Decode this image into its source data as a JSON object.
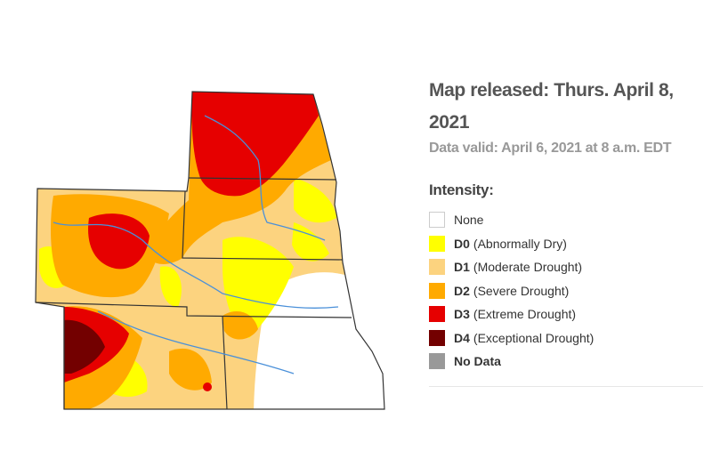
{
  "title": "Map released: Thurs. April 8, 2021",
  "subtitle": "Data valid: April 6, 2021 at 8 a.m. EDT",
  "legend": {
    "title": "Intensity:",
    "items": [
      {
        "label": "None",
        "color": "#ffffff"
      },
      {
        "code": "D0",
        "label": "(Abnormally Dry)",
        "color": "#ffff00"
      },
      {
        "code": "D1",
        "label": "(Moderate Drought)",
        "color": "#fcd37f"
      },
      {
        "code": "D2",
        "label": "(Severe Drought)",
        "color": "#ffaa00"
      },
      {
        "code": "D3",
        "label": "(Extreme Drought)",
        "color": "#e60000"
      },
      {
        "code": "D4",
        "label": "(Exceptional Drought)",
        "color": "#730000"
      },
      {
        "label": "No Data",
        "color": "#999999"
      }
    ]
  }
}
